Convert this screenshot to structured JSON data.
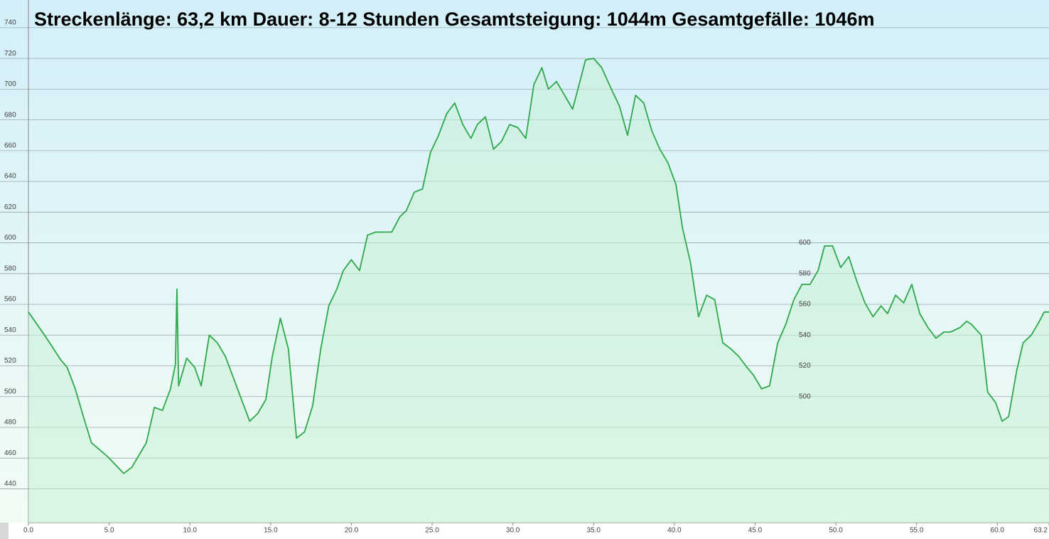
{
  "chart_data": {
    "type": "area",
    "title": "Streckenlänge: 63,2 km Dauer: 8-12 Stunden Gesamtsteigung: 1044m Gesamtgefälle: 1046m",
    "color": "#2ea84a",
    "fill": "#c9f0d6",
    "grid": true,
    "xlim": [
      0,
      63.2
    ],
    "ylim": [
      418,
      758
    ],
    "xticks": [
      {
        "value": 0,
        "label": "0.0"
      },
      {
        "value": 5,
        "label": "5.0"
      },
      {
        "value": 10,
        "label": "10.0"
      },
      {
        "value": 15,
        "label": "15.0"
      },
      {
        "value": 20,
        "label": "20.0"
      },
      {
        "value": 25,
        "label": "25.0"
      },
      {
        "value": 30,
        "label": "30.0"
      },
      {
        "value": 35,
        "label": "35.0"
      },
      {
        "value": 40,
        "label": "40.0"
      },
      {
        "value": 45,
        "label": "45.0"
      },
      {
        "value": 50,
        "label": "50.0"
      },
      {
        "value": 55,
        "label": "55.0"
      },
      {
        "value": 60,
        "label": "60.0"
      },
      {
        "value": 63.2,
        "label": "63.2"
      }
    ],
    "yticks": [
      440,
      460,
      480,
      500,
      520,
      540,
      560,
      580,
      600,
      620,
      640,
      660,
      680,
      700,
      720,
      740
    ],
    "y2lim": [
      418,
      758
    ],
    "y2ticks": [
      500,
      520,
      540,
      560,
      580,
      600
    ],
    "x": [
      0,
      1.0,
      2.0,
      2.4,
      2.9,
      3.4,
      3.9,
      4.9,
      5.9,
      6.4,
      6.8,
      7.3,
      7.8,
      8.3,
      8.8,
      9.1,
      9.2,
      9.3,
      9.8,
      10.3,
      10.7,
      11.2,
      11.7,
      12.2,
      12.7,
      13.2,
      13.7,
      14.2,
      14.7,
      15.1,
      15.6,
      16.1,
      16.6,
      17.1,
      17.6,
      18.1,
      18.6,
      19.1,
      19.5,
      20.0,
      20.5,
      21.0,
      21.5,
      22.5,
      23.0,
      23.4,
      23.9,
      24.4,
      24.9,
      25.4,
      25.9,
      26.4,
      26.9,
      27.4,
      27.8,
      28.3,
      28.8,
      29.3,
      29.8,
      30.3,
      30.8,
      31.3,
      31.8,
      32.2,
      32.7,
      33.2,
      33.7,
      34.2,
      34.5,
      35.0,
      35.5,
      36.1,
      36.6,
      37.1,
      37.6,
      38.1,
      38.6,
      39.1,
      39.6,
      40.1,
      40.5,
      41.0,
      41.5,
      42.0,
      42.5,
      43.0,
      43.5,
      44.0,
      44.5,
      44.9,
      45.4,
      45.9,
      46.4,
      46.9,
      47.4,
      47.9,
      48.4,
      48.9,
      49.3,
      49.8,
      50.3,
      50.8,
      51.3,
      51.8,
      52.3,
      52.8,
      53.2,
      53.7,
      54.2,
      54.7,
      55.2,
      55.7,
      56.2,
      56.7,
      57.1,
      57.7,
      58.1,
      58.4,
      59.0,
      59.4,
      59.9,
      60.3,
      60.7,
      61.2,
      61.6,
      62.1,
      62.5,
      62.9,
      63.2
    ],
    "values": [
      555,
      540,
      524,
      519,
      505,
      487,
      470,
      461,
      450,
      454,
      461,
      470,
      493,
      491,
      505,
      521,
      570,
      507,
      525,
      519,
      507,
      540,
      535,
      526,
      512,
      498,
      484,
      489,
      498,
      526,
      551,
      531,
      473,
      477,
      494,
      531,
      559,
      570,
      582,
      589,
      582,
      605,
      607,
      607,
      617,
      621,
      633,
      635,
      659,
      670,
      684,
      691,
      677,
      668,
      677,
      682,
      661,
      666,
      677,
      675,
      668,
      703,
      714,
      700,
      705,
      696,
      687,
      707,
      719,
      720,
      714,
      700,
      689,
      670,
      696,
      691,
      673,
      661,
      652,
      638,
      610,
      587,
      552,
      566,
      563,
      535,
      531,
      526,
      519,
      514,
      505,
      507,
      535,
      547,
      563,
      573,
      573,
      582,
      598,
      598,
      584,
      591,
      575,
      561,
      552,
      559,
      554,
      566,
      561,
      573,
      554,
      545,
      538,
      542,
      542,
      545,
      549,
      547,
      540,
      503,
      496,
      484,
      487,
      517,
      535,
      540,
      547,
      555,
      555
    ]
  }
}
